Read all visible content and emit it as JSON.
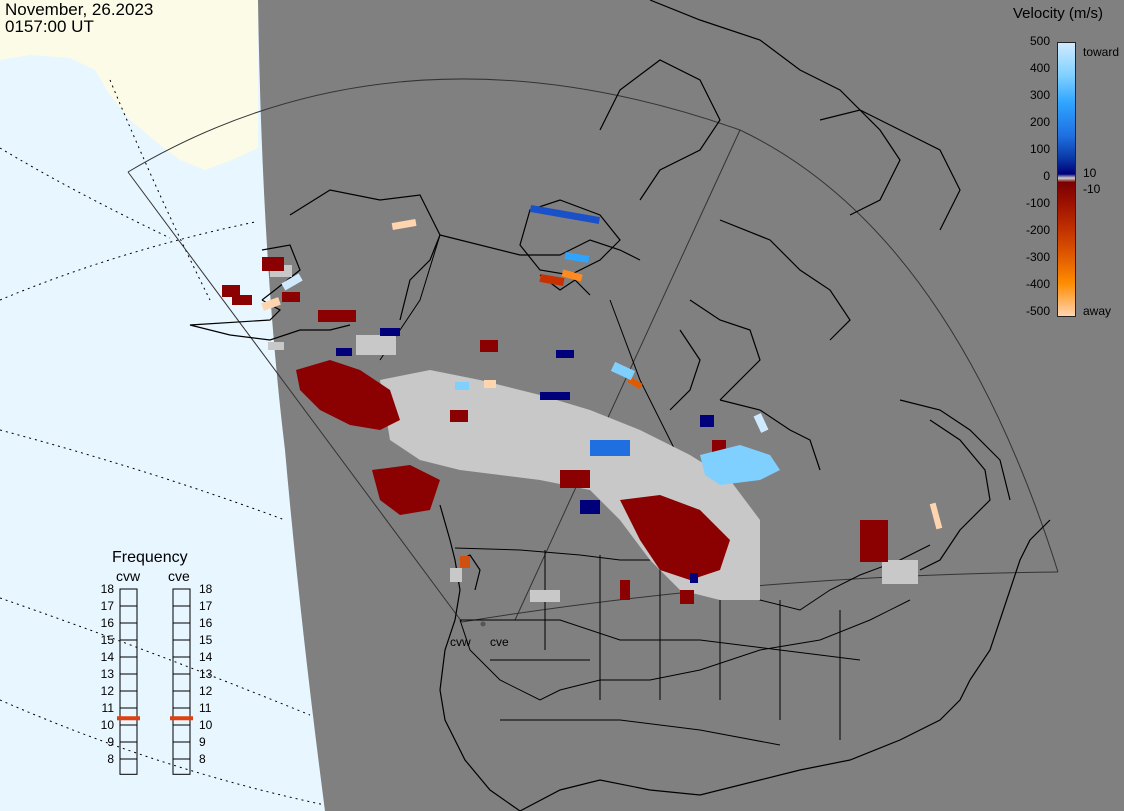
{
  "timestamp": {
    "date": "November, 26.2023",
    "time": "0157:00 UT"
  },
  "velocity_legend": {
    "title": "Velocity (m/s)",
    "ticks": [
      "500",
      "400",
      "300",
      "200",
      "100",
      "0",
      "-100",
      "-200",
      "-300",
      "-400",
      "-500"
    ],
    "inner_labels": [
      "10",
      "-10"
    ],
    "toward_label": "toward",
    "away_label": "away",
    "colors": {
      "toward_gradient": [
        "#cfeaff",
        "#7fd0ff",
        "#2fa4ff",
        "#1f6fe0",
        "#0a3aa8",
        "#00007a"
      ],
      "away_gradient": [
        "#7a0000",
        "#9a0f00",
        "#c03000",
        "#e05a00",
        "#ff8c00",
        "#ffd5b0"
      ],
      "ground_scatter": "#c8c8c8"
    }
  },
  "frequency_panel": {
    "title": "Frequency",
    "radars": [
      "cvw",
      "cve"
    ],
    "scale": [
      "18",
      "17",
      "16",
      "15",
      "14",
      "13",
      "12",
      "11",
      "10",
      "9",
      "8"
    ],
    "cvw_mhz": 10.9,
    "cve_mhz": 10.9,
    "marker_color": "#e04010"
  },
  "map": {
    "radar_labels": [
      "cvw",
      "cve"
    ],
    "colors": {
      "night": "#7f7f7f",
      "ocean_day": "#e8f6ff",
      "land_day": "#fbfbe8",
      "outline": "#000000"
    }
  }
}
